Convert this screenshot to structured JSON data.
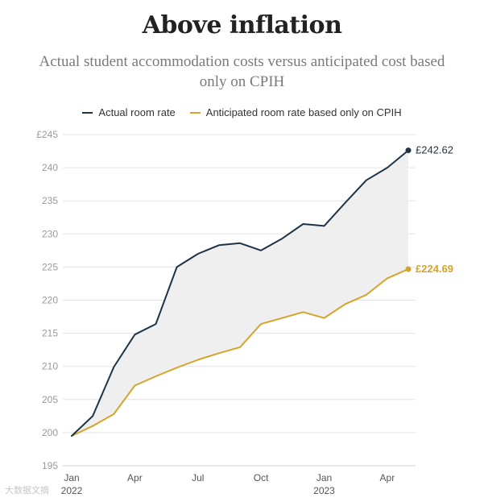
{
  "title": "Above inflation",
  "subtitle": "Actual student accommodation costs versus anticipated cost based only on CPIH",
  "watermark": "大数据文摘",
  "colors": {
    "actual": "#1e3446",
    "anticipated": "#d8a32a",
    "fill": "#efefef",
    "grid": "#e3e3e3",
    "axis_text": "#9a9a9a"
  },
  "chart_data": {
    "type": "line",
    "title": "Above inflation",
    "subtitle": "Actual student accommodation costs versus anticipated cost based only on CPIH",
    "x": [
      "2022-01",
      "2022-02",
      "2022-03",
      "2022-04",
      "2022-05",
      "2022-06",
      "2022-07",
      "2022-08",
      "2022-09",
      "2022-10",
      "2022-11",
      "2022-12",
      "2023-01",
      "2023-02",
      "2023-03",
      "2023-04",
      "2023-05"
    ],
    "x_ticks": [
      {
        "label": "Jan",
        "sublabel": "2022",
        "index": 0
      },
      {
        "label": "Apr",
        "sublabel": "",
        "index": 3
      },
      {
        "label": "Jul",
        "sublabel": "",
        "index": 6
      },
      {
        "label": "Oct",
        "sublabel": "",
        "index": 9
      },
      {
        "label": "Jan",
        "sublabel": "2023",
        "index": 12
      },
      {
        "label": "Apr",
        "sublabel": "",
        "index": 15
      }
    ],
    "y_ticks": [
      {
        "value": 245,
        "label": "£245"
      },
      {
        "value": 240,
        "label": "240"
      },
      {
        "value": 235,
        "label": "235"
      },
      {
        "value": 230,
        "label": "230"
      },
      {
        "value": 225,
        "label": "225"
      },
      {
        "value": 220,
        "label": "220"
      },
      {
        "value": 215,
        "label": "215"
      },
      {
        "value": 210,
        "label": "210"
      },
      {
        "value": 205,
        "label": "205"
      },
      {
        "value": 200,
        "label": "200"
      },
      {
        "value": 195,
        "label": "195"
      }
    ],
    "ylim": [
      195,
      245
    ],
    "grid": true,
    "legend_position": "top-center",
    "shaded_gap": true,
    "series": [
      {
        "name": "Actual room rate",
        "color": "#1e3446",
        "values": [
          199.5,
          202.5,
          209.9,
          214.8,
          216.4,
          225.0,
          227.0,
          228.3,
          228.6,
          227.5,
          229.3,
          231.5,
          231.2,
          234.7,
          238.1,
          240.0,
          242.62
        ],
        "end_label": "£242.62"
      },
      {
        "name": "Anticipated room rate based only on CPIH",
        "color": "#d8a32a",
        "values": [
          199.5,
          201.0,
          202.8,
          207.1,
          208.5,
          209.8,
          211.0,
          212.0,
          212.9,
          216.4,
          217.3,
          218.2,
          217.3,
          219.4,
          220.8,
          223.3,
          224.69
        ],
        "end_label": "£224.69"
      }
    ]
  }
}
